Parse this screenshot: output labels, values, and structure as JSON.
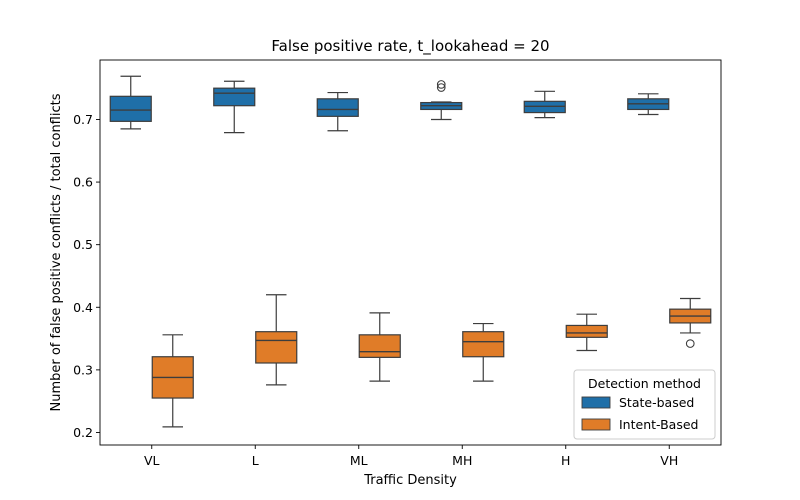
{
  "chart_data": {
    "type": "box",
    "title": "False positive rate, t_lookahead = 20",
    "xlabel": "Traffic Density",
    "ylabel": "Number of false positive conflicts / total conflicts",
    "categories": [
      "VL",
      "L",
      "ML",
      "MH",
      "H",
      "VH"
    ],
    "ylim": [
      0.18,
      0.795
    ],
    "yticks": [
      "0.2",
      "0.3",
      "0.4",
      "0.5",
      "0.6",
      "0.7"
    ],
    "grid": false,
    "legend": {
      "title": "Detection method",
      "position": "lower-right"
    },
    "series": [
      {
        "name": "State-based",
        "color": "#1f6fa8",
        "boxes": [
          {
            "whisker_low": 0.685,
            "q1": 0.697,
            "median": 0.715,
            "q3": 0.737,
            "whisker_high": 0.769,
            "outliers": []
          },
          {
            "whisker_low": 0.679,
            "q1": 0.722,
            "median": 0.742,
            "q3": 0.75,
            "whisker_high": 0.761,
            "outliers": []
          },
          {
            "whisker_low": 0.682,
            "q1": 0.705,
            "median": 0.716,
            "q3": 0.733,
            "whisker_high": 0.743,
            "outliers": []
          },
          {
            "whisker_low": 0.7,
            "q1": 0.716,
            "median": 0.722,
            "q3": 0.727,
            "whisker_high": 0.728,
            "outliers": [
              0.751,
              0.756
            ]
          },
          {
            "whisker_low": 0.703,
            "q1": 0.711,
            "median": 0.721,
            "q3": 0.729,
            "whisker_high": 0.745,
            "outliers": []
          },
          {
            "whisker_low": 0.708,
            "q1": 0.716,
            "median": 0.725,
            "q3": 0.733,
            "whisker_high": 0.741,
            "outliers": []
          }
        ]
      },
      {
        "name": "Intent-Based",
        "color": "#e07c28",
        "boxes": [
          {
            "whisker_low": 0.209,
            "q1": 0.255,
            "median": 0.288,
            "q3": 0.321,
            "whisker_high": 0.356,
            "outliers": []
          },
          {
            "whisker_low": 0.276,
            "q1": 0.311,
            "median": 0.347,
            "q3": 0.361,
            "whisker_high": 0.42,
            "outliers": []
          },
          {
            "whisker_low": 0.282,
            "q1": 0.32,
            "median": 0.329,
            "q3": 0.356,
            "whisker_high": 0.391,
            "outliers": []
          },
          {
            "whisker_low": 0.282,
            "q1": 0.321,
            "median": 0.345,
            "q3": 0.361,
            "whisker_high": 0.374,
            "outliers": []
          },
          {
            "whisker_low": 0.331,
            "q1": 0.352,
            "median": 0.359,
            "q3": 0.371,
            "whisker_high": 0.389,
            "outliers": []
          },
          {
            "whisker_low": 0.359,
            "q1": 0.375,
            "median": 0.386,
            "q3": 0.397,
            "whisker_high": 0.414,
            "outliers": [
              0.342
            ]
          }
        ]
      }
    ]
  }
}
